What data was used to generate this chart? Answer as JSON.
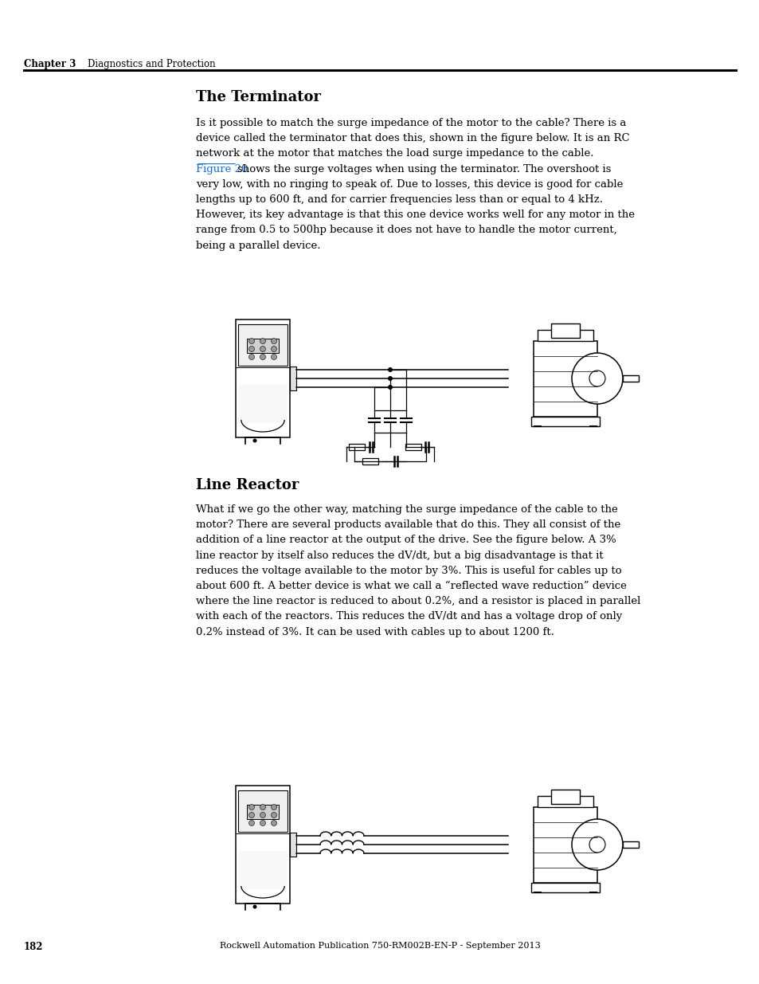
{
  "page_number": "182",
  "footer_text": "Rockwell Automation Publication 750-RM002B-EN-P - September 2013",
  "header_chapter": "Chapter 3",
  "header_section": "Diagnostics and Protection",
  "section1_title": "The Terminator",
  "section1_lines": [
    {
      "text": "Is it possible to match the surge impedance of the motor to the cable? There is a",
      "link": false
    },
    {
      "text": "device called the terminator that does this, shown in the figure below. It is an RC",
      "link": false
    },
    {
      "text": "network at the motor that matches the load surge impedance to the cable.",
      "link": false
    },
    {
      "text": "Figure 20|shows the surge voltages when using the terminator. The overshoot is",
      "link": true
    },
    {
      "text": "very low, with no ringing to speak of. Due to losses, this device is good for cable",
      "link": false
    },
    {
      "text": "lengths up to 600 ft, and for carrier frequencies less than or equal to 4 kHz.",
      "link": false
    },
    {
      "text": "However, its key advantage is that this one device works well for any motor in the",
      "link": false
    },
    {
      "text": "range from 0.5 to 500hp because it does not have to handle the motor current,",
      "link": false
    },
    {
      "text": "being a parallel device.",
      "link": false
    }
  ],
  "section2_title": "Line Reactor",
  "section2_lines": [
    "What if we go the other way, matching the surge impedance of the cable to the",
    "motor? There are several products available that do this. They all consist of the",
    "addition of a line reactor at the output of the drive. See the figure below. A 3%",
    "line reactor by itself also reduces the dV/dt, but a big disadvantage is that it",
    "reduces the voltage available to the motor by 3%. This is useful for cables up to",
    "about 600 ft. A better device is what we call a “reflected wave reduction” device",
    "where the line reactor is reduced to about 0.2%, and a resistor is placed in parallel",
    "with each of the reactors. This reduces the dV/dt and has a voltage drop of only",
    "0.2% instead of 3%. It can be used with cables up to about 1200 ft."
  ],
  "background_color": "#ffffff",
  "text_color": "#000000",
  "link_color": "#1a6fcc",
  "header_line_color": "#000000"
}
